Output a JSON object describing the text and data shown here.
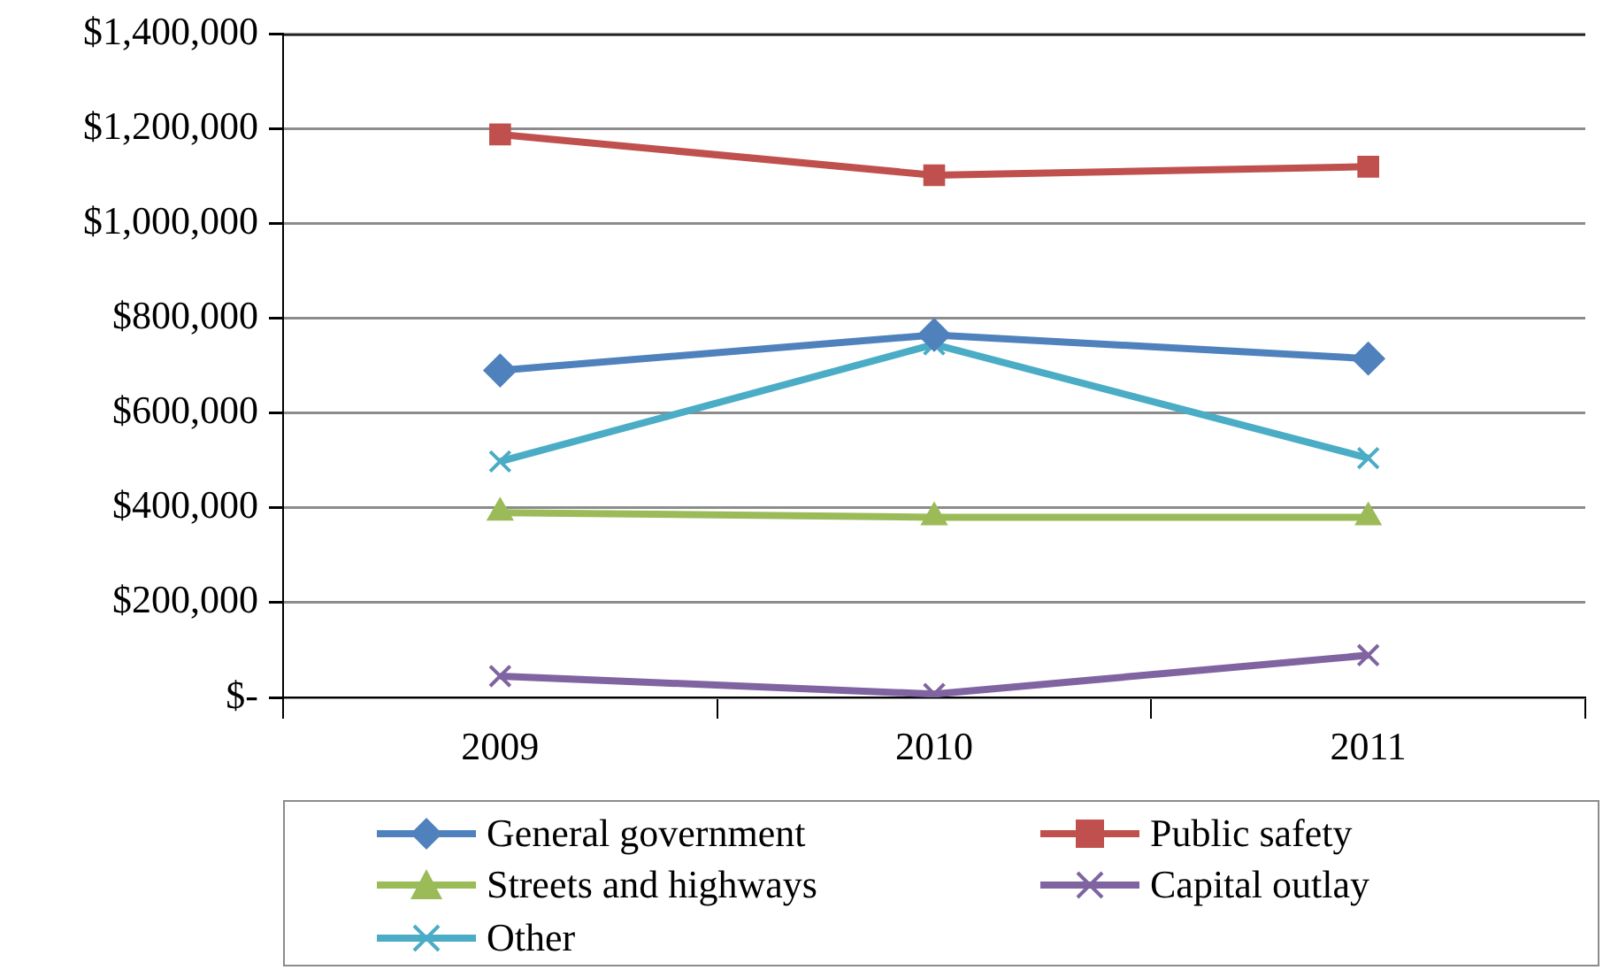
{
  "chart_data": {
    "type": "line",
    "categories": [
      "2009",
      "2010",
      "2011"
    ],
    "series": [
      {
        "name": "General government",
        "color": "#4f81bd",
        "marker": "diamond",
        "values": [
          690000,
          765000,
          715000
        ]
      },
      {
        "name": "Public safety",
        "color": "#c0504d",
        "marker": "square",
        "values": [
          1188000,
          1102000,
          1120000
        ]
      },
      {
        "name": "Streets and highways",
        "color": "#9bbb59",
        "marker": "triangle",
        "values": [
          390000,
          380000,
          380000
        ]
      },
      {
        "name": "Capital outlay",
        "color": "#8064a2",
        "marker": "cross",
        "values": [
          45000,
          7000,
          89000
        ]
      },
      {
        "name": "Other",
        "color": "#4bacc6",
        "marker": "cross",
        "values": [
          498000,
          745000,
          505000
        ]
      }
    ],
    "ylim": [
      0,
      1400000
    ],
    "yticks": [
      {
        "value": 0,
        "label": "$-"
      },
      {
        "value": 200000,
        "label": "$200,000"
      },
      {
        "value": 400000,
        "label": "$400,000"
      },
      {
        "value": 600000,
        "label": "$600,000"
      },
      {
        "value": 800000,
        "label": "$800,000"
      },
      {
        "value": 1000000,
        "label": "$1,000,000"
      },
      {
        "value": 1200000,
        "label": "$1,200,000"
      },
      {
        "value": 1400000,
        "label": "$1,400,000"
      }
    ],
    "grid": "y",
    "legend": "bottom",
    "line_style": "solid"
  }
}
